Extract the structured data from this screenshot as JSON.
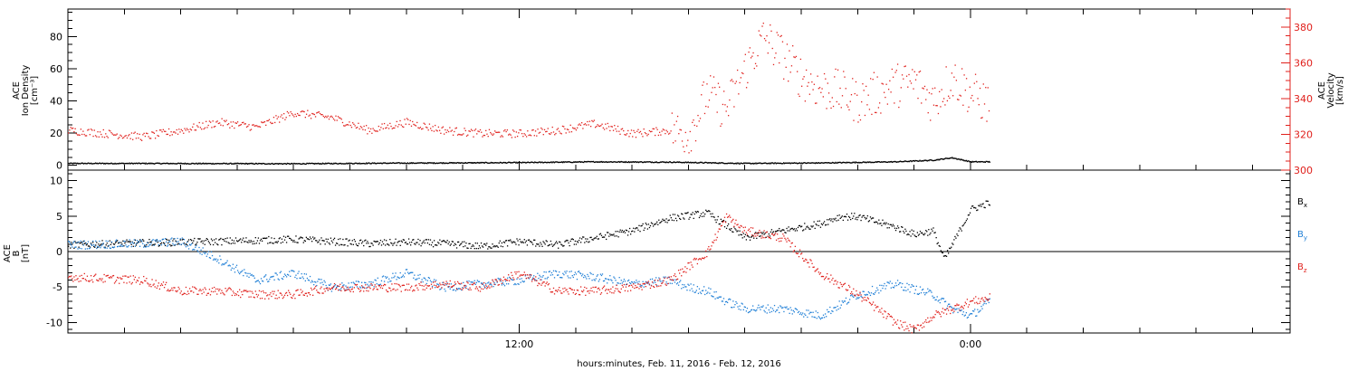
{
  "colors": {
    "background": "#ffffff",
    "axis": "#000000",
    "red": "#e0201c",
    "blue": "#1f7fd6",
    "black": "#000000"
  },
  "x_axis": {
    "label": "hours:minutes, Feb. 11, 2016 - Feb. 12, 2016",
    "range_hours": [
      -24,
      8.5
    ],
    "tick_labels": [
      {
        "text": "12:00",
        "hour": -12
      },
      {
        "text": "0:00",
        "hour": 0
      }
    ],
    "minor_tick_hours": [
      -22.5,
      -21,
      -19.5,
      -18,
      -16.5,
      -15,
      -13.5,
      -12,
      -10.5,
      -9,
      -7.5,
      -6,
      -4.5,
      -3,
      -1.5,
      0,
      1.5,
      3,
      4.5,
      6,
      7.5
    ]
  },
  "chart_data": [
    {
      "type": "scatter",
      "panel": "top",
      "left_axis": {
        "label_lines": [
          "ACE",
          "Ion Density",
          "[cm⁻³]"
        ],
        "ylim": [
          -3,
          97
        ],
        "ticks": [
          0,
          20,
          40,
          60,
          80
        ],
        "minor_step": 5
      },
      "right_axis": {
        "label_lines": [
          "ACE",
          "Velocity",
          "[km/s]"
        ],
        "ylim": [
          300,
          390
        ],
        "ticks": [
          300,
          320,
          340,
          360,
          380
        ],
        "minor_step": 5
      },
      "series": [
        {
          "axis": "left",
          "color": "black",
          "x_hours": [
            -24,
            -22,
            -20,
            -18,
            -16,
            -14,
            -12,
            -10,
            -8,
            -6,
            -4,
            -2,
            -1,
            -0.5,
            0,
            0.5
          ],
          "y": [
            1.5,
            1.5,
            1.4,
            1.3,
            1.6,
            1.8,
            2,
            2.5,
            2.3,
            1.5,
            1.8,
            2.5,
            3.5,
            5,
            2.5,
            2.5
          ]
        },
        {
          "axis": "left",
          "color": "red",
          "x_hours": [
            -24,
            -22,
            -21,
            -20,
            -19,
            -18,
            -17,
            -16,
            -15,
            -14,
            -13,
            -12,
            -11,
            -10,
            -9,
            -8,
            -7.5,
            -7,
            -6.5,
            -6,
            -5.5,
            -5,
            -4.5,
            -4,
            -3.5,
            -3,
            -2.5,
            -2,
            -1.5,
            -1,
            -0.5,
            0,
            0.5
          ],
          "y": [
            22,
            18,
            22,
            27,
            24,
            33,
            30,
            22,
            27,
            22,
            20,
            20,
            22,
            26,
            20,
            22,
            20,
            45,
            35,
            60,
            80,
            68,
            55,
            48,
            46,
            40,
            45,
            50,
            52,
            40,
            55,
            45,
            38
          ]
        }
      ]
    },
    {
      "type": "scatter",
      "panel": "bottom",
      "left_axis": {
        "label_lines": [
          "ACE",
          "B",
          "[nT]"
        ],
        "ylim": [
          -11.5,
          11.5
        ],
        "ticks": [
          -10,
          -5,
          0,
          5,
          10
        ],
        "minor_step": 1
      },
      "zero_line": true,
      "series": [
        {
          "name": "B",
          "subscript": "x",
          "color": "black",
          "x_hours": [
            -24,
            -22,
            -20,
            -18,
            -16,
            -15,
            -14,
            -13,
            -12,
            -11,
            -10,
            -9,
            -8,
            -7,
            -6,
            -5,
            -4,
            -3.5,
            -3,
            -2,
            -1.5,
            -1,
            -0.7,
            0,
            0.5
          ],
          "y": [
            1,
            1.3,
            1.5,
            1.8,
            1.2,
            1.4,
            1.2,
            0.8,
            1.5,
            1,
            2,
            3,
            4.8,
            5.5,
            2,
            3,
            4,
            5,
            5,
            3.5,
            2.5,
            3,
            -1,
            6,
            7
          ]
        },
        {
          "name": "B",
          "subscript": "y",
          "color": "blue",
          "x_hours": [
            -24,
            -22,
            -21,
            -20,
            -19,
            -18,
            -17,
            -16,
            -15,
            -14,
            -13,
            -12,
            -11,
            -10,
            -9,
            -8,
            -7.5,
            -7,
            -6.5,
            -6,
            -5,
            -4,
            -3,
            -2,
            -1,
            -0.5,
            0,
            0.5
          ],
          "y": [
            1,
            1.2,
            1.5,
            -1,
            -4,
            -3,
            -5,
            -4.5,
            -3,
            -5,
            -4.5,
            -4,
            -3,
            -3.5,
            -4.5,
            -4,
            -5,
            -5.5,
            -7,
            -8,
            -8,
            -9,
            -6,
            -4.5,
            -6,
            -8,
            -9,
            -7
          ]
        },
        {
          "name": "B",
          "subscript": "z",
          "color": "red",
          "x_hours": [
            -24,
            -22,
            -21,
            -20,
            -19,
            -18,
            -17,
            -16,
            -15,
            -14,
            -13,
            -12,
            -11,
            -10,
            -9,
            -8,
            -7,
            -6.5,
            -6,
            -5,
            -4,
            -3,
            -2,
            -1.5,
            -1,
            -0.5,
            0,
            0.5
          ],
          "y": [
            -3.5,
            -4,
            -5.5,
            -5.5,
            -6,
            -6,
            -5,
            -5,
            -5,
            -4.5,
            -5,
            -3,
            -5.5,
            -5.5,
            -5,
            -4,
            0,
            5,
            3,
            2,
            -3,
            -6,
            -10,
            -11,
            -9,
            -8,
            -7,
            -6.5
          ]
        }
      ]
    }
  ]
}
